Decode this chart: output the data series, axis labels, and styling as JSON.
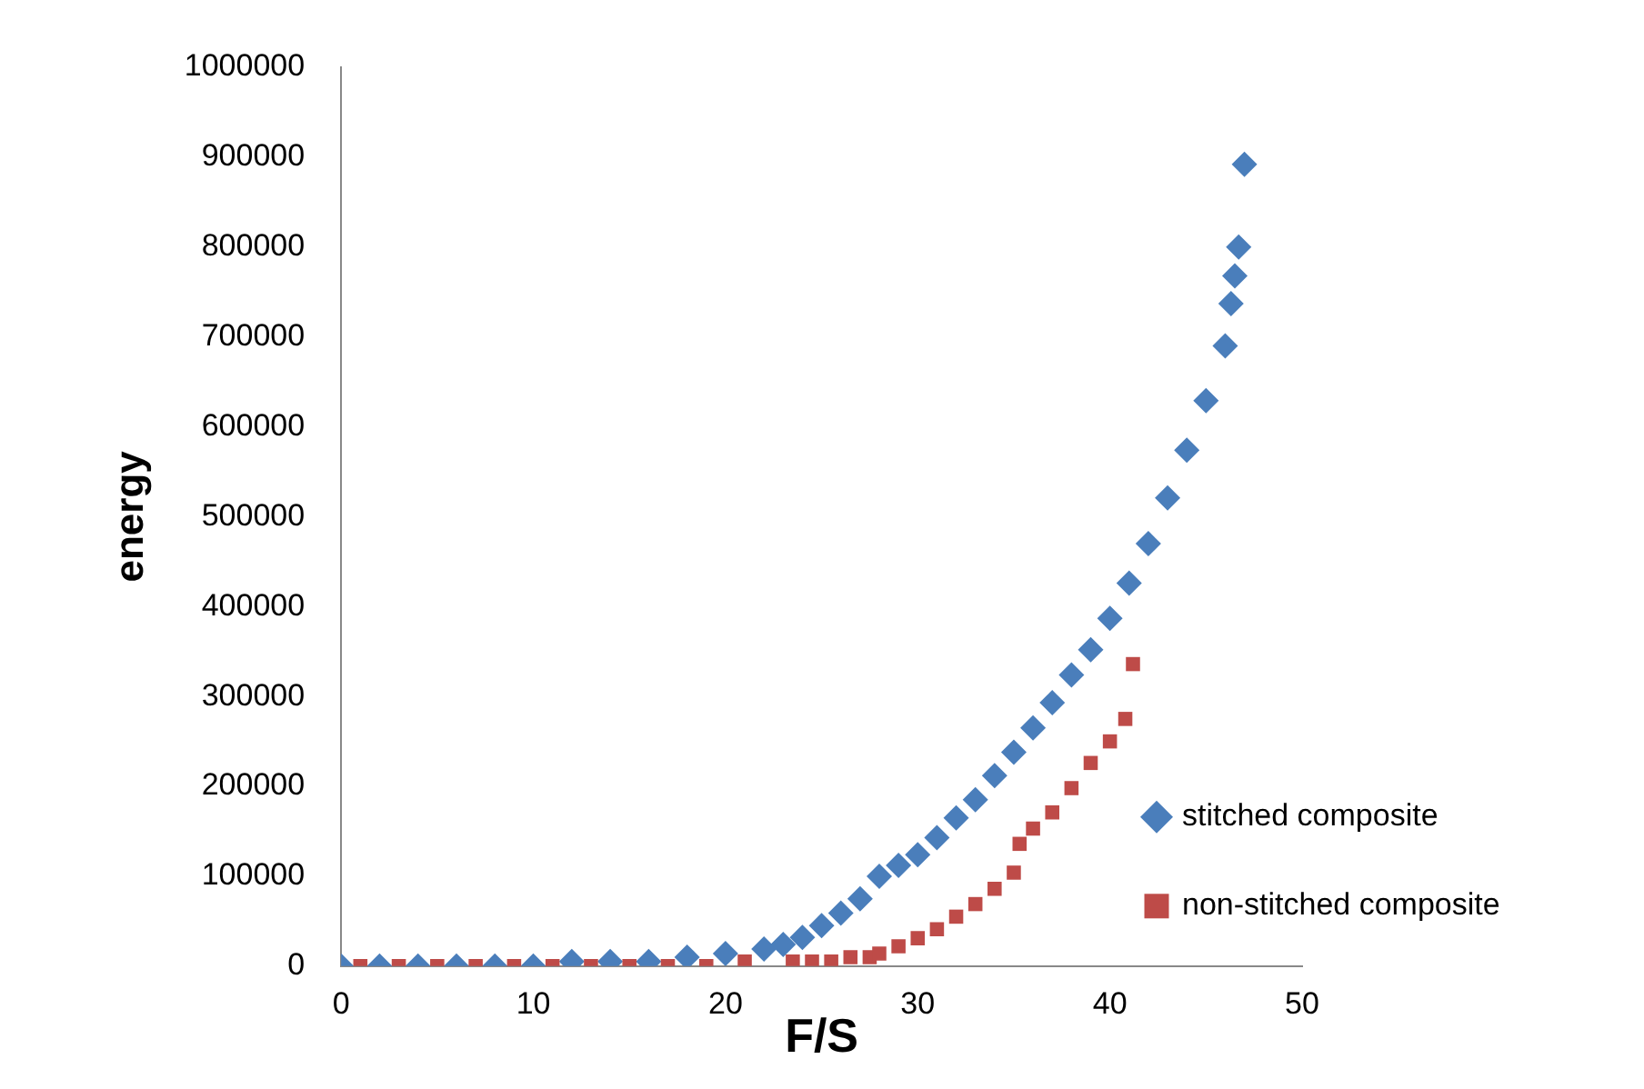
{
  "chart_data": {
    "type": "scatter",
    "xlabel": "F/S",
    "ylabel": "energy",
    "xlim": [
      0,
      50
    ],
    "xticks": [
      0,
      10,
      20,
      30,
      40,
      50
    ],
    "ylim": [
      0,
      1000000
    ],
    "yticks": [
      0,
      100000,
      200000,
      300000,
      400000,
      500000,
      600000,
      700000,
      800000,
      900000,
      1000000
    ],
    "grid": false,
    "legend": "right",
    "series": [
      {
        "name": "stitched composite",
        "color": "#4a7ebb",
        "marker": "diamond",
        "x": [
          0,
          2,
          4,
          6,
          8,
          10,
          12,
          14,
          16,
          18,
          20,
          22,
          23,
          24,
          25,
          26,
          27,
          28,
          29,
          30,
          31,
          32,
          33,
          34,
          35,
          36,
          37,
          38,
          39,
          40,
          41,
          42,
          43,
          44,
          45,
          46,
          46.3,
          46.5,
          46.7,
          47
        ],
        "values": [
          0,
          0,
          0,
          0,
          0,
          0,
          5000,
          5000,
          5000,
          10000,
          14000,
          19000,
          24000,
          32000,
          45000,
          59000,
          75000,
          100000,
          112000,
          124000,
          143000,
          165000,
          185000,
          212000,
          238000,
          265000,
          293000,
          324000,
          352000,
          387000,
          426000,
          470000,
          521000,
          574000,
          629000,
          690000,
          737000,
          768000,
          800000,
          892000
        ]
      },
      {
        "name": "non-stitched composite",
        "color": "#be4b48",
        "marker": "square",
        "x": [
          1,
          3,
          5,
          7,
          9,
          11,
          13,
          15,
          17,
          19,
          21,
          23.5,
          24.5,
          25.5,
          26.5,
          27.5,
          28,
          29,
          30,
          31,
          32,
          33,
          34,
          35,
          35.3,
          36,
          37,
          38,
          39,
          40,
          40.8,
          41.2
        ],
        "values": [
          0,
          0,
          0,
          0,
          0,
          0,
          0,
          0,
          0,
          0,
          5000,
          5000,
          5000,
          5000,
          10000,
          10000,
          14000,
          22000,
          31000,
          41000,
          55000,
          69000,
          86000,
          104000,
          136000,
          153000,
          171000,
          198000,
          226000,
          250000,
          275000,
          336000
        ]
      }
    ]
  }
}
